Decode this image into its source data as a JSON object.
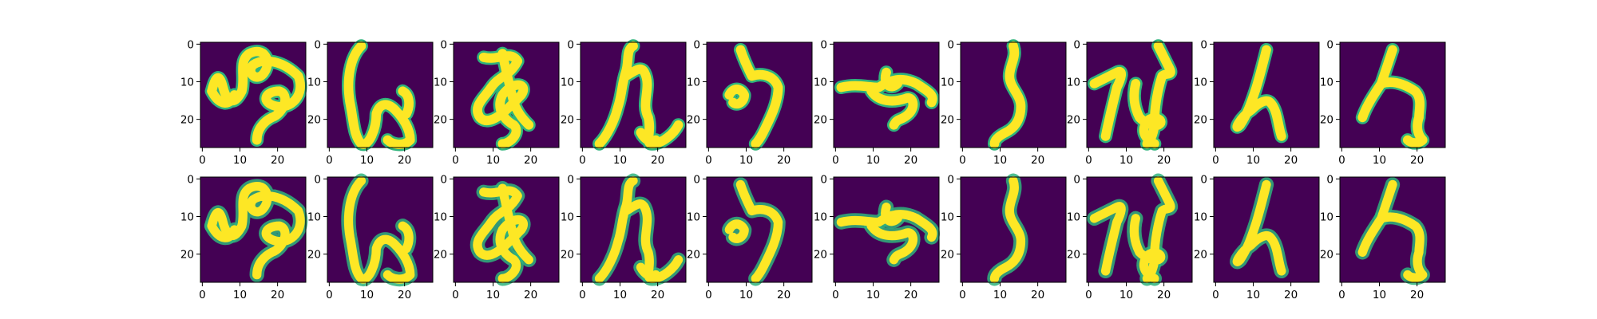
{
  "chart_data": {
    "type": "image_grid",
    "rows": 2,
    "columns": 10,
    "row_roles": [
      "original",
      "reconstruction"
    ],
    "image_size": [
      28,
      28
    ],
    "xlim": [
      0,
      27
    ],
    "ylim": [
      27,
      0
    ],
    "xticks": [
      0,
      10,
      20
    ],
    "yticks": [
      0,
      10,
      20
    ],
    "xtick_labels": [
      "0",
      "10",
      "20"
    ],
    "ytick_labels": [
      "0",
      "10",
      "20"
    ],
    "colormap": "viridis",
    "colors": {
      "background": "#440154",
      "stroke_core": "#fde725",
      "stroke_edge": "#2fb47c",
      "axis": "#000000"
    },
    "glyph_sequence": [
      "glyph-1",
      "glyph-2",
      "glyph-3",
      "glyph-4",
      "glyph-5",
      "glyph-6",
      "glyph-7",
      "glyph-8",
      "glyph-9",
      "glyph-10"
    ]
  }
}
